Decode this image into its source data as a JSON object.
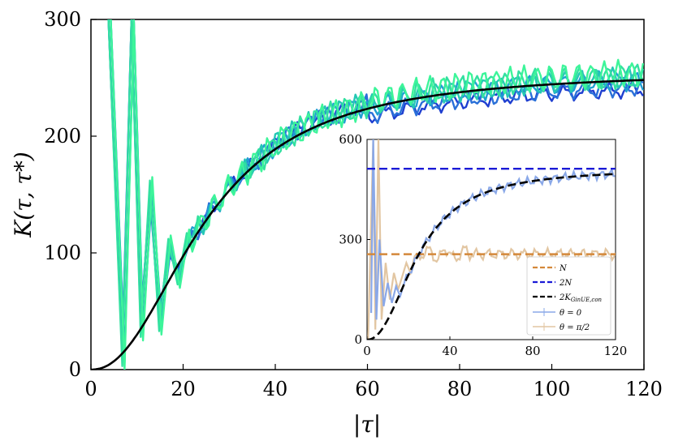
{
  "chart_data": [
    {
      "type": "line",
      "xlabel": "|τ|",
      "ylabel": "K(τ, τ*)",
      "xlim": [
        0,
        120
      ],
      "ylim": [
        0,
        300
      ],
      "xticks": [
        "0",
        "20",
        "40",
        "60",
        "80",
        "100",
        "120"
      ],
      "yticks": [
        "0",
        "100",
        "200",
        "300"
      ],
      "plateau": 256,
      "theory_curve": {
        "name": "K_GinUE,con",
        "color": "#000000",
        "tau_half": 25
      },
      "series_colors": [
        "#1f3fd0",
        "#2a70d8",
        "#1f9fd2",
        "#25c7b4",
        "#33e0a0",
        "#3df59a"
      ],
      "early_peaks": {
        "x": [
          4,
          7,
          9,
          11,
          13,
          15,
          17,
          19,
          21
        ],
        "y": [
          300,
          15,
          300,
          40,
          150,
          45,
          100,
          85,
          105
        ]
      }
    },
    {
      "type": "line",
      "inset": true,
      "xlim": [
        0,
        120
      ],
      "ylim": [
        0,
        600
      ],
      "xticks": [
        "0",
        "40",
        "80",
        "120"
      ],
      "yticks": [
        "0",
        "300",
        "600"
      ],
      "series": [
        {
          "name": "N",
          "label": "N",
          "value": 256,
          "style": "dashed",
          "color": "#d4883a"
        },
        {
          "name": "2N",
          "label": "2N",
          "value": 512,
          "style": "dashed",
          "color": "#1a1ad6"
        },
        {
          "name": "2K_GinUE,con",
          "label": "2K",
          "sub": "GinUE,con",
          "style": "dashed",
          "color": "#000000",
          "plateau": 512
        },
        {
          "name": "θ = 0",
          "label": "θ = 0",
          "color": "#8aa8e8",
          "plateau": 512
        },
        {
          "name": "θ = π/2",
          "label": "θ = π/2",
          "color": "#e2c6a2",
          "plateau": 256
        }
      ]
    }
  ]
}
